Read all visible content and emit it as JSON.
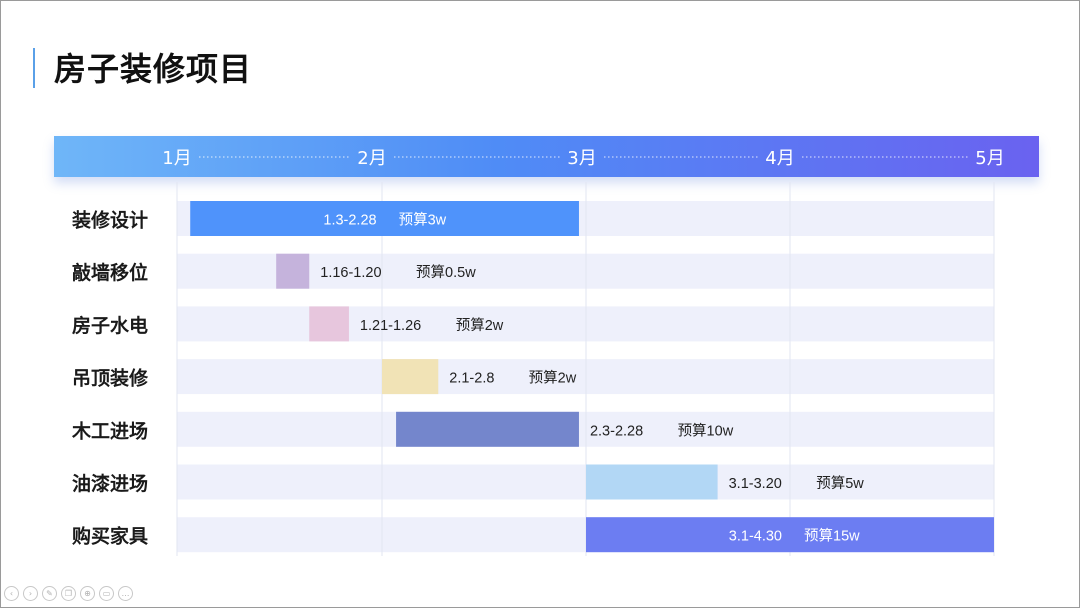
{
  "page": {
    "title": "房子装修项目"
  },
  "chart_data": {
    "type": "gantt",
    "title": "房子装修项目",
    "timeline": [
      "1月",
      "2月",
      "3月",
      "4月",
      "5月"
    ],
    "x_range": [
      "1.1",
      "5.1"
    ],
    "tasks": [
      {
        "name": "装修设计",
        "start": "1.3",
        "end": "2.28",
        "range_label": "1.3-2.28",
        "budget_label": "预算3w",
        "budget_w": 3,
        "color": "#4f93fb",
        "label_color": "#ffffff",
        "label_inside": true
      },
      {
        "name": "敲墙移位",
        "start": "1.16",
        "end": "1.20",
        "range_label": "1.16-1.20",
        "budget_label": "预算0.5w",
        "budget_w": 0.5,
        "color": "#c5b3dc",
        "label_color": "#222222",
        "label_inside": false
      },
      {
        "name": "房子水电",
        "start": "1.21",
        "end": "1.26",
        "range_label": "1.21-1.26",
        "budget_label": "预算2w",
        "budget_w": 2,
        "color": "#e7c6dd",
        "label_color": "#222222",
        "label_inside": false
      },
      {
        "name": "吊顶装修",
        "start": "2.1",
        "end": "2.8",
        "range_label": "2.1-2.8",
        "budget_label": "预算2w",
        "budget_w": 2,
        "color": "#f1e3b6",
        "label_color": "#222222",
        "label_inside": false
      },
      {
        "name": "木工进场",
        "start": "2.3",
        "end": "2.28",
        "range_label": "2.3-2.28",
        "budget_label": "预算10w",
        "budget_w": 10,
        "color": "#7486cc",
        "label_color": "#222222",
        "label_inside": false
      },
      {
        "name": "油漆进场",
        "start": "3.1",
        "end": "3.20",
        "range_label": "3.1-3.20",
        "budget_label": "预算5w",
        "budget_w": 5,
        "color": "#b2d7f5",
        "label_color": "#222222",
        "label_inside": false
      },
      {
        "name": "购买家具",
        "start": "3.1",
        "end": "4.30",
        "range_label": "3.1-4.30",
        "budget_label": "预算15w",
        "budget_w": 15,
        "color": "#6c7df2",
        "label_color": "#ffffff",
        "label_inside": true
      }
    ],
    "grid": true,
    "colors": {
      "axis_gradient": [
        "#6fb6f8",
        "#6a62f0"
      ],
      "row_band": "#eef0fb"
    }
  }
}
